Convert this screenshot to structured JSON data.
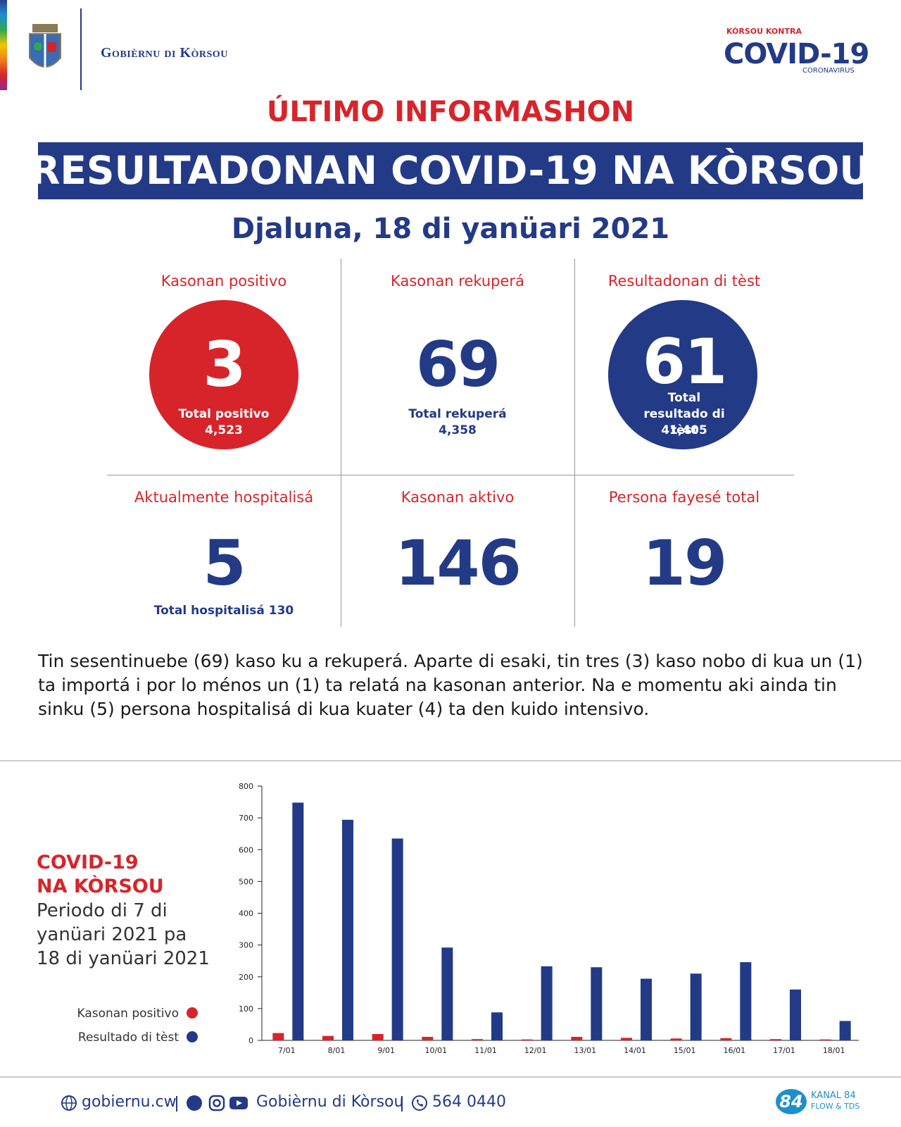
{
  "header": {
    "org": "Gobièrnu di Kòrsou",
    "campaign_top": "KÒRSOU KONTRA",
    "campaign_main": "COVID-19",
    "campaign_sub": "CORONAVIRUS"
  },
  "kicker": "ÚLTIMO INFORMASHON",
  "title": "RESULTADONAN COVID-19 NA KÒRSOU",
  "date": "Djaluna, 18 di yanüari 2021",
  "stats": [
    {
      "label": "Kasonan positivo",
      "value": 3,
      "total_label": "Total positivo",
      "total": "4,523"
    },
    {
      "label": "Kasonan rekuperá",
      "value": 69,
      "total_label": "Total rekuperá",
      "total": "4,358"
    },
    {
      "label": "Resultadonan di tèst",
      "value": 61,
      "total_label": "Total resultado di tèst",
      "total": "41,405"
    },
    {
      "label": "Aktualmente hospitalisá",
      "value": 5,
      "total_label": "Total hospitalisá",
      "total": "130"
    },
    {
      "label": "Kasonan aktivo",
      "value": 146
    },
    {
      "label": "Persona fayesé total",
      "value": 19
    }
  ],
  "paragraph": "Tin sesentinuebe (69) kaso ku a rekuperá. Aparte di esaki, tin tres (3) kaso nobo di kua un (1) ta importá i por lo ménos un (1) ta relatá na kasonan anterior. Na e momentu aki ainda tin sinku (5) persona hospitalisá di kua kuater (4) ta den kuido intensivo.",
  "chart_data": {
    "type": "bar",
    "title": "COVID-19 NA KÒRSOU",
    "subtitle": "Periodo di 7 di yanüari 2021 pa 18 di yanüari 2021",
    "categories": [
      "7/01",
      "8/01",
      "9/01",
      "10/01",
      "11/01",
      "12/01",
      "13/01",
      "14/01",
      "15/01",
      "16/01",
      "17/01",
      "18/01"
    ],
    "series": [
      {
        "name": "Kasonan positivo",
        "color": "#d7242b",
        "values": [
          23,
          14,
          20,
          11,
          4,
          3,
          11,
          8,
          6,
          7,
          4,
          3
        ]
      },
      {
        "name": "Resultado di tèst",
        "color": "#233a86",
        "values": [
          748,
          694,
          635,
          292,
          88,
          233,
          230,
          194,
          210,
          246,
          160,
          61
        ]
      }
    ],
    "ylim": [
      0,
      800
    ],
    "yticks": [
      0,
      100,
      200,
      300,
      400,
      500,
      600,
      700,
      800
    ]
  },
  "footer": {
    "website": "gobiernu.cw",
    "social": "Gobièrnu di Kòrsou",
    "phone": "564 0440",
    "badge": "84",
    "channel": "KANAL 84",
    "channel_sub": "FLOW & TDS"
  }
}
